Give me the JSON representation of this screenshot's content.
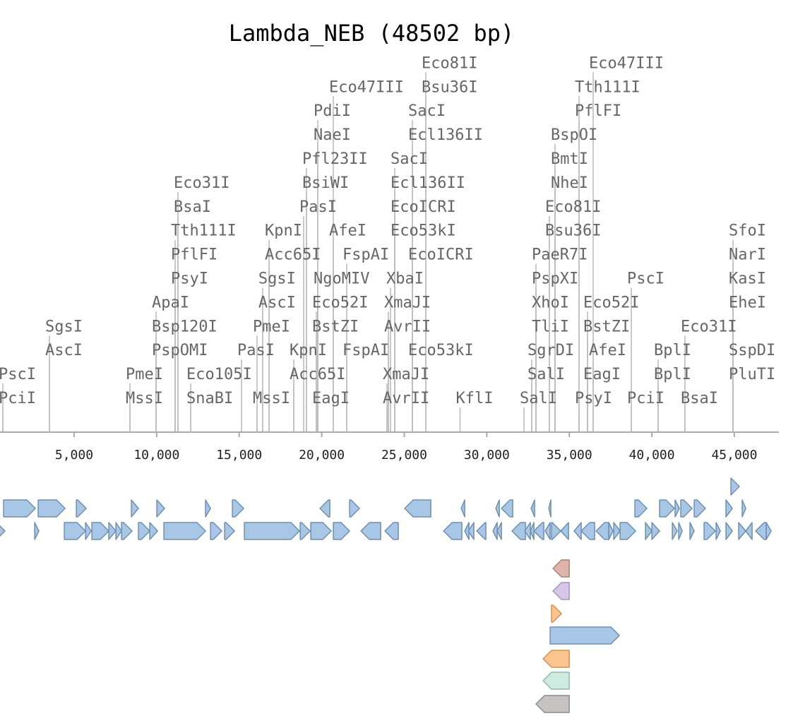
{
  "title": "Lambda_NEB (48502 bp)",
  "sequence_length": 48502,
  "axis": {
    "ticks": [
      {
        "value": 5000,
        "label": "5,000"
      },
      {
        "value": 10000,
        "label": "10,000"
      },
      {
        "value": 15000,
        "label": "15,000"
      },
      {
        "value": 20000,
        "label": "20,000"
      },
      {
        "value": 25000,
        "label": "25,000"
      },
      {
        "value": 30000,
        "label": "30,000"
      },
      {
        "value": 35000,
        "label": "35,000"
      },
      {
        "value": 40000,
        "label": "40,000"
      },
      {
        "value": 45000,
        "label": "45,000"
      }
    ]
  },
  "sites": [
    {
      "label": "PciI",
      "pos": 680,
      "level": 0
    },
    {
      "label": "PscI",
      "pos": 680,
      "level": 1
    },
    {
      "label": "AscI",
      "pos": 3504,
      "level": 2
    },
    {
      "label": "SgsI",
      "pos": 3504,
      "level": 3
    },
    {
      "label": "MssI",
      "pos": 8380,
      "level": 0
    },
    {
      "label": "PmeI",
      "pos": 8380,
      "level": 1
    },
    {
      "label": "PspOMI",
      "pos": 9963,
      "level": 2
    },
    {
      "label": "Bsp120I",
      "pos": 9963,
      "level": 3
    },
    {
      "label": "ApaI",
      "pos": 9963,
      "level": 4
    },
    {
      "label": "PsyI",
      "pos": 11119,
      "level": 5
    },
    {
      "label": "PflFI",
      "pos": 11119,
      "level": 6
    },
    {
      "label": "Tth111I",
      "pos": 11119,
      "level": 7
    },
    {
      "label": "BsaI",
      "pos": 11290,
      "level": 8
    },
    {
      "label": "Eco31I",
      "pos": 11290,
      "level": 9
    },
    {
      "label": "SnaBI",
      "pos": 12060,
      "level": 0
    },
    {
      "label": "Eco105I",
      "pos": 12060,
      "level": 1
    },
    {
      "label": "PasI",
      "pos": 15140,
      "level": 2
    },
    {
      "label": "MssI",
      "pos": 16080,
      "level": 0
    },
    {
      "label": "PmeI",
      "pos": 16080,
      "level": 3
    },
    {
      "label": "AscI",
      "pos": 16420,
      "level": 4
    },
    {
      "label": "SgsI",
      "pos": 16420,
      "level": 5
    },
    {
      "label": "Acc65I",
      "pos": 16810,
      "level": 6
    },
    {
      "label": "KpnI",
      "pos": 16810,
      "level": 7
    },
    {
      "label": "Acc65I",
      "pos": 18306,
      "level": 1
    },
    {
      "label": "KpnI",
      "pos": 18306,
      "level": 2
    },
    {
      "label": "PasI",
      "pos": 18905,
      "level": 8
    },
    {
      "label": "BsiWI",
      "pos": 19076,
      "level": 9
    },
    {
      "label": "Pfl23II",
      "pos": 19076,
      "level": 10
    },
    {
      "label": "EagI",
      "pos": 19675,
      "level": 0
    },
    {
      "label": "BstZI",
      "pos": 19675,
      "level": 3
    },
    {
      "label": "Eco52I",
      "pos": 19675,
      "level": 4
    },
    {
      "label": "NgoMIV",
      "pos": 19760,
      "level": 5
    },
    {
      "label": "NaeI",
      "pos": 19760,
      "level": 11
    },
    {
      "label": "PdiI",
      "pos": 19760,
      "level": 12
    },
    {
      "label": "AfeI",
      "pos": 20700,
      "level": 7
    },
    {
      "label": "Eco47III",
      "pos": 20700,
      "level": 13
    },
    {
      "label": "FspAI",
      "pos": 21514,
      "level": 2
    },
    {
      "label": "FspAI",
      "pos": 21514,
      "level": 6
    },
    {
      "label": "AvrII",
      "pos": 23953,
      "level": 0
    },
    {
      "label": "XmaJI",
      "pos": 23953,
      "level": 1
    },
    {
      "label": "AvrII",
      "pos": 24038,
      "level": 3
    },
    {
      "label": "XmaJI",
      "pos": 24038,
      "level": 4
    },
    {
      "label": "XbaI",
      "pos": 24167,
      "level": 5
    },
    {
      "label": "Eco53kI",
      "pos": 24424,
      "level": 7
    },
    {
      "label": "EcoICRI",
      "pos": 24424,
      "level": 8
    },
    {
      "label": "Ecl136II",
      "pos": 24424,
      "level": 9
    },
    {
      "label": "SacI",
      "pos": 24424,
      "level": 10
    },
    {
      "label": "Eco53kI",
      "pos": 25493,
      "level": 2
    },
    {
      "label": "EcoICRI",
      "pos": 25493,
      "level": 6
    },
    {
      "label": "Ecl136II",
      "pos": 25493,
      "level": 11
    },
    {
      "label": "SacI",
      "pos": 25493,
      "level": 12
    },
    {
      "label": "Bsu36I",
      "pos": 26306,
      "level": 13
    },
    {
      "label": "Eco81I",
      "pos": 26306,
      "level": 14
    },
    {
      "label": "KflI",
      "pos": 28380,
      "level": 0
    },
    {
      "label": "SalI",
      "pos": 32253,
      "level": 0
    },
    {
      "label": "SalI",
      "pos": 32723,
      "level": 1
    },
    {
      "label": "SgrDI",
      "pos": 32723,
      "level": 2
    },
    {
      "label": "TliI",
      "pos": 32980,
      "level": 3
    },
    {
      "label": "XhoI",
      "pos": 32980,
      "level": 4
    },
    {
      "label": "PspXI",
      "pos": 32980,
      "level": 5
    },
    {
      "label": "PaeR7I",
      "pos": 32980,
      "level": 6
    },
    {
      "label": "Bsu36I",
      "pos": 33793,
      "level": 7
    },
    {
      "label": "Eco81I",
      "pos": 33793,
      "level": 8
    },
    {
      "label": "NheI",
      "pos": 34135,
      "level": 9
    },
    {
      "label": "BmtI",
      "pos": 34135,
      "level": 10
    },
    {
      "label": "BspOI",
      "pos": 34135,
      "level": 11
    },
    {
      "label": "PsyI",
      "pos": 35590,
      "level": 0
    },
    {
      "label": "PflFI",
      "pos": 35590,
      "level": 12
    },
    {
      "label": "Tth111I",
      "pos": 35590,
      "level": 13
    },
    {
      "label": "EagI",
      "pos": 36103,
      "level": 1
    },
    {
      "label": "BstZI",
      "pos": 36103,
      "level": 3
    },
    {
      "label": "Eco52I",
      "pos": 36103,
      "level": 4
    },
    {
      "label": "AfeI",
      "pos": 36445,
      "level": 2
    },
    {
      "label": "Eco47III",
      "pos": 36445,
      "level": 14
    },
    {
      "label": "PciI",
      "pos": 38755,
      "level": 0
    },
    {
      "label": "PscI",
      "pos": 38755,
      "level": 5
    },
    {
      "label": "BplI",
      "pos": 40381,
      "level": 1
    },
    {
      "label": "BplI",
      "pos": 40381,
      "level": 2
    },
    {
      "label": "BsaI",
      "pos": 42006,
      "level": 0
    },
    {
      "label": "Eco31I",
      "pos": 42006,
      "level": 3
    },
    {
      "label": "PluTI",
      "pos": 44915,
      "level": 1
    },
    {
      "label": "SspDI",
      "pos": 44915,
      "level": 2
    },
    {
      "label": "EheI",
      "pos": 44915,
      "level": 4
    },
    {
      "label": "KasI",
      "pos": 44915,
      "level": 5
    },
    {
      "label": "NarI",
      "pos": 44915,
      "level": 6
    },
    {
      "label": "SfoI",
      "pos": 44915,
      "level": 7
    }
  ],
  "feature_colors": {
    "cds": {
      "fill": "#a8c6e6",
      "stroke": "#6f8fb0"
    },
    "rose": {
      "fill": "#dfb5ab",
      "stroke": "#a98077"
    },
    "lavender": {
      "fill": "#d8c6ea",
      "stroke": "#a592c2"
    },
    "orange": {
      "fill": "#fcc48e",
      "stroke": "#d0904e"
    },
    "mint": {
      "fill": "#cdebe1",
      "stroke": "#93baa9"
    },
    "gray": {
      "fill": "#c8c3c3",
      "stroke": "#8f8888"
    }
  },
  "features": [
    [
      44791,
      45304,
      1,
      0,
      "cds"
    ],
    [
      727,
      2652,
      1,
      1,
      "cds"
    ],
    [
      2823,
      4449,
      1,
      1,
      "cds"
    ],
    [
      5134,
      5733,
      1,
      1,
      "cds"
    ],
    [
      8470,
      8898,
      1,
      1,
      "cds"
    ],
    [
      10011,
      10481,
      1,
      1,
      "cds"
    ],
    [
      12962,
      13262,
      1,
      1,
      "cds"
    ],
    [
      14588,
      15272,
      1,
      1,
      "cds"
    ],
    [
      19893,
      20492,
      -1,
      1,
      "cds"
    ],
    [
      21690,
      22289,
      1,
      1,
      "cds"
    ],
    [
      25026,
      26609,
      -1,
      1,
      "cds"
    ],
    [
      28449,
      28663,
      -1,
      1,
      "cds"
    ],
    [
      30545,
      30760,
      -1,
      1,
      "cds"
    ],
    [
      30888,
      31572,
      -1,
      1,
      "cds"
    ],
    [
      32684,
      32898,
      -1,
      1,
      "cds"
    ],
    [
      33754,
      33882,
      -1,
      1,
      "cds"
    ],
    [
      38973,
      39700,
      1,
      1,
      "cds"
    ],
    [
      40470,
      41368,
      1,
      1,
      "cds"
    ],
    [
      41411,
      41668,
      1,
      1,
      "cds"
    ],
    [
      41753,
      42438,
      1,
      1,
      "cds"
    ],
    [
      42566,
      43250,
      1,
      1,
      "cds"
    ],
    [
      44491,
      44876,
      1,
      1,
      "cds"
    ],
    [
      45475,
      45689,
      1,
      1,
      "cds"
    ],
    [
      100,
      813,
      1,
      2,
      "cds"
    ],
    [
      2609,
      2866,
      1,
      2,
      "cds"
    ],
    [
      4406,
      5690,
      1,
      2,
      "cds"
    ],
    [
      5690,
      6032,
      1,
      2,
      "cds"
    ],
    [
      6075,
      7102,
      1,
      2,
      "cds"
    ],
    [
      7102,
      7530,
      1,
      2,
      "cds"
    ],
    [
      7530,
      7872,
      1,
      2,
      "cds"
    ],
    [
      7872,
      8513,
      1,
      2,
      "cds"
    ],
    [
      8898,
      9583,
      1,
      2,
      "cds"
    ],
    [
      9583,
      10054,
      1,
      2,
      "cds"
    ],
    [
      10439,
      12962,
      1,
      2,
      "cds"
    ],
    [
      13262,
      13947,
      1,
      2,
      "cds"
    ],
    [
      14118,
      14717,
      1,
      2,
      "cds"
    ],
    [
      15315,
      18652,
      1,
      2,
      "cds"
    ],
    [
      18695,
      19294,
      1,
      2,
      "cds"
    ],
    [
      19337,
      20578,
      1,
      2,
      "cds"
    ],
    [
      20706,
      21690,
      1,
      2,
      "cds"
    ],
    [
      22375,
      23573,
      -1,
      2,
      "cds"
    ],
    [
      23829,
      24641,
      -1,
      2,
      "cds"
    ],
    [
      27381,
      28492,
      -1,
      2,
      "cds"
    ],
    [
      28663,
      28920,
      -1,
      2,
      "cds"
    ],
    [
      28877,
      29219,
      -1,
      2,
      "cds"
    ],
    [
      29390,
      29946,
      -1,
      2,
      "cds"
    ],
    [
      30374,
      30631,
      -1,
      2,
      "cds"
    ],
    [
      30631,
      30888,
      -1,
      2,
      "cds"
    ],
    [
      31529,
      32342,
      -1,
      2,
      "cds"
    ],
    [
      32299,
      32642,
      -1,
      2,
      "cds"
    ],
    [
      32642,
      32856,
      -1,
      2,
      "cds"
    ],
    [
      32856,
      33455,
      -1,
      2,
      "cds"
    ],
    [
      33540,
      33839,
      -1,
      2,
      "cds"
    ],
    [
      33925,
      34481,
      1,
      2,
      "cds"
    ],
    [
      34481,
      34952,
      -1,
      2,
      "cds"
    ],
    [
      35294,
      35722,
      -1,
      2,
      "cds"
    ],
    [
      35722,
      36535,
      -1,
      2,
      "cds"
    ],
    [
      36621,
      37391,
      -1,
      2,
      "cds"
    ],
    [
      37391,
      37647,
      1,
      2,
      "cds"
    ],
    [
      37690,
      38075,
      1,
      2,
      "cds"
    ],
    [
      38075,
      39016,
      1,
      2,
      "cds"
    ],
    [
      39615,
      40000,
      1,
      2,
      "cds"
    ],
    [
      40000,
      40470,
      1,
      2,
      "cds"
    ],
    [
      41240,
      41539,
      1,
      2,
      "cds"
    ],
    [
      41625,
      41839,
      1,
      2,
      "cds"
    ],
    [
      42309,
      42566,
      1,
      2,
      "cds"
    ],
    [
      43165,
      43849,
      1,
      2,
      "cds"
    ],
    [
      43892,
      44149,
      1,
      2,
      "cds"
    ],
    [
      44491,
      44876,
      1,
      2,
      "cds"
    ],
    [
      45261,
      45689,
      1,
      2,
      "cds"
    ],
    [
      45689,
      46074,
      -1,
      2,
      "cds"
    ],
    [
      46288,
      46930,
      -1,
      2,
      "cds"
    ],
    [
      46930,
      47229,
      1,
      2,
      "cds"
    ],
    [
      34010,
      34994,
      -1,
      3,
      "rose"
    ],
    [
      34010,
      34994,
      -1,
      4,
      "lavender"
    ],
    [
      33925,
      34524,
      1,
      5,
      "orange"
    ],
    [
      33839,
      38032,
      1,
      6,
      "cds"
    ],
    [
      33411,
      34994,
      -1,
      7,
      "orange"
    ],
    [
      33411,
      34994,
      -1,
      8,
      "mint"
    ],
    [
      32984,
      34994,
      -1,
      9,
      "gray"
    ]
  ]
}
